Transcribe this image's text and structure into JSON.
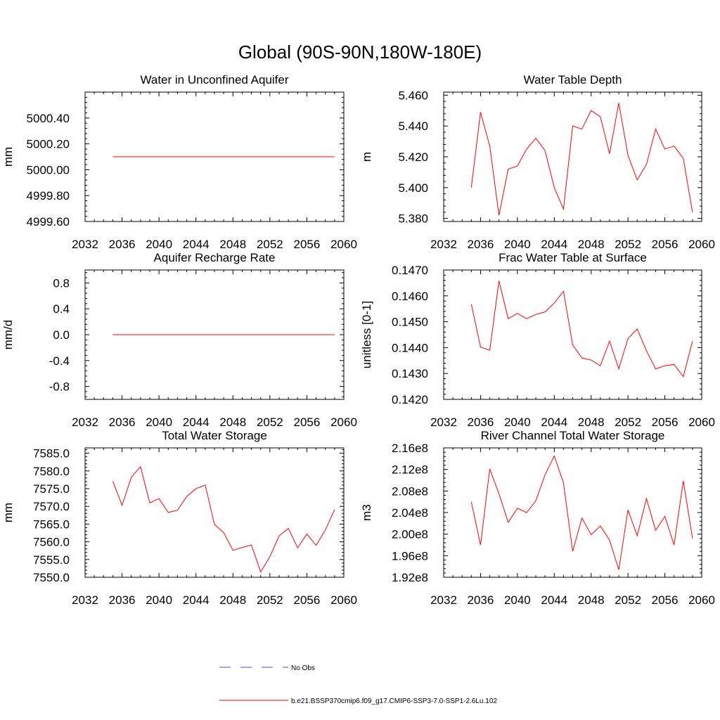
{
  "title": "Global (90S-90N,180W-180E)",
  "legend": {
    "items": [
      {
        "label": "No Obs",
        "color": "#4d4dd6",
        "style": "dashed"
      },
      {
        "label": "b.e21.BSSP370cmip6.f09_g17.CMIP6-SSP3-7.0-SSP1-2.6Lu.102",
        "color": "#ff0000",
        "style": "solid"
      }
    ]
  },
  "chart_data": [
    {
      "type": "line",
      "title": "Water in Unconfined Aquifer",
      "ylabel": "mm",
      "xlim": [
        2032,
        2060
      ],
      "ylim": [
        4999.6,
        5000.6
      ],
      "xticks": [
        2032,
        2036,
        2040,
        2044,
        2048,
        2052,
        2056,
        2060
      ],
      "yticks": [
        4999.6,
        4999.8,
        5000.0,
        5000.2,
        5000.4
      ],
      "ytick_labels": [
        "4999.60",
        "4999.80",
        "5000.00",
        "5000.20",
        "5000.40"
      ],
      "color": "#ff0000",
      "x": [
        2035,
        2059
      ],
      "y": [
        5000.1,
        5000.1
      ]
    },
    {
      "type": "line",
      "title": "Water Table Depth",
      "ylabel": "m",
      "xlim": [
        2032,
        2060
      ],
      "ylim": [
        5.378,
        5.462
      ],
      "xticks": [
        2032,
        2036,
        2040,
        2044,
        2048,
        2052,
        2056,
        2060
      ],
      "yticks": [
        5.38,
        5.4,
        5.42,
        5.44,
        5.46
      ],
      "ytick_labels": [
        "5.380",
        "5.400",
        "5.420",
        "5.440",
        "5.460"
      ],
      "color": "#ff0000",
      "x": [
        2035,
        2036,
        2037,
        2038,
        2039,
        2040,
        2041,
        2042,
        2043,
        2044,
        2045,
        2046,
        2047,
        2048,
        2049,
        2050,
        2051,
        2052,
        2053,
        2054,
        2055,
        2056,
        2057,
        2058,
        2059
      ],
      "y": [
        5.4,
        5.449,
        5.427,
        5.382,
        5.412,
        5.414,
        5.425,
        5.432,
        5.424,
        5.4,
        5.386,
        5.44,
        5.438,
        5.45,
        5.446,
        5.422,
        5.455,
        5.421,
        5.405,
        5.415,
        5.438,
        5.425,
        5.427,
        5.419,
        5.384
      ]
    },
    {
      "type": "line",
      "title": "Aquifer Recharge Rate",
      "ylabel": "mm/d",
      "xlim": [
        2032,
        2060
      ],
      "ylim": [
        -1.0,
        1.0
      ],
      "xticks": [
        2032,
        2036,
        2040,
        2044,
        2048,
        2052,
        2056,
        2060
      ],
      "yticks": [
        -0.8,
        -0.4,
        0.0,
        0.4,
        0.8
      ],
      "ytick_labels": [
        "-0.8",
        "-0.4",
        "0.0",
        "0.4",
        "0.8"
      ],
      "color": "#ff0000",
      "x": [
        2035,
        2059
      ],
      "y": [
        0.0,
        0.0
      ]
    },
    {
      "type": "line",
      "title": "Frac Water Table at Surface",
      "ylabel": "unitless [0-1]",
      "xlim": [
        2032,
        2060
      ],
      "ylim": [
        0.142,
        0.147
      ],
      "xticks": [
        2032,
        2036,
        2040,
        2044,
        2048,
        2052,
        2056,
        2060
      ],
      "yticks": [
        0.142,
        0.143,
        0.144,
        0.145,
        0.146,
        0.147
      ],
      "ytick_labels": [
        "0.1420",
        "0.1430",
        "0.1440",
        "0.1450",
        "0.1460",
        "0.1470"
      ],
      "color": "#ff0000",
      "x": [
        2035,
        2036,
        2037,
        2038,
        2039,
        2040,
        2041,
        2042,
        2043,
        2044,
        2045,
        2046,
        2047,
        2048,
        2049,
        2050,
        2051,
        2052,
        2053,
        2054,
        2055,
        2056,
        2057,
        2058,
        2059
      ],
      "y": [
        0.14568,
        0.14402,
        0.1439,
        0.14658,
        0.14512,
        0.14532,
        0.14512,
        0.14528,
        0.14538,
        0.14572,
        0.14618,
        0.1441,
        0.1436,
        0.14352,
        0.1433,
        0.14425,
        0.14318,
        0.14435,
        0.14472,
        0.14388,
        0.14318,
        0.1433,
        0.14335,
        0.14288,
        0.14425
      ]
    },
    {
      "type": "line",
      "title": "Total Water Storage",
      "ylabel": "mm",
      "xlim": [
        2032,
        2060
      ],
      "ylim": [
        7550.0,
        7586.5
      ],
      "xticks": [
        2032,
        2036,
        2040,
        2044,
        2048,
        2052,
        2056,
        2060
      ],
      "yticks": [
        7550,
        7555,
        7560,
        7565,
        7570,
        7575,
        7580,
        7585
      ],
      "ytick_labels": [
        "7550.0",
        "7555.0",
        "7560.0",
        "7565.0",
        "7570.0",
        "7575.0",
        "7580.0",
        "7585.0"
      ],
      "color": "#ff0000",
      "x": [
        2035,
        2036,
        2037,
        2038,
        2039,
        2040,
        2041,
        2042,
        2043,
        2044,
        2045,
        2046,
        2047,
        2048,
        2049,
        2050,
        2051,
        2052,
        2053,
        2054,
        2055,
        2056,
        2057,
        2058,
        2059
      ],
      "y": [
        7577.1,
        7570.3,
        7578.2,
        7581.2,
        7571.0,
        7572.2,
        7568.3,
        7568.9,
        7572.8,
        7575.0,
        7576.0,
        7564.9,
        7562.6,
        7557.6,
        7558.4,
        7559.1,
        7551.5,
        7555.8,
        7561.7,
        7563.8,
        7558.3,
        7562.2,
        7559.0,
        7563.3,
        7569.1
      ]
    },
    {
      "type": "line",
      "title": "River Channel Total Water Storage",
      "ylabel": "m3",
      "xlim": [
        2032,
        2060
      ],
      "ylim": [
        192000000,
        216000000
      ],
      "xticks": [
        2032,
        2036,
        2040,
        2044,
        2048,
        2052,
        2056,
        2060
      ],
      "yticks": [
        192000000,
        196000000,
        200000000,
        204000000,
        208000000,
        212000000,
        216000000
      ],
      "ytick_labels": [
        "1.92e8",
        "1.96e8",
        "2.00e8",
        "2.04e8",
        "2.08e8",
        "2.12e8",
        "2.16e8"
      ],
      "color": "#ff0000",
      "x": [
        2035,
        2036,
        2037,
        2038,
        2039,
        2040,
        2041,
        2042,
        2043,
        2044,
        2045,
        2046,
        2047,
        2048,
        2049,
        2050,
        2051,
        2052,
        2053,
        2054,
        2055,
        2056,
        2057,
        2058,
        2059
      ],
      "y": [
        206000000,
        198000000,
        212100000,
        207500000,
        202200000,
        204800000,
        204000000,
        206200000,
        211000000,
        214500000,
        209500000,
        196800000,
        203000000,
        199900000,
        201500000,
        198900000,
        193400000,
        204500000,
        199700000,
        206600000,
        200700000,
        203300000,
        198000000,
        209900000,
        199200000
      ]
    }
  ]
}
